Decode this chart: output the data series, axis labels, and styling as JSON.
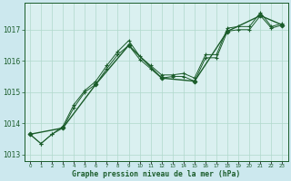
{
  "xlabel": "Graphe pression niveau de la mer (hPa)",
  "background_color": "#cce8ee",
  "plot_bg_color": "#daf0f0",
  "grid_color": "#b0d8cc",
  "line_color": "#1a5c2a",
  "ylim": [
    1012.8,
    1017.85
  ],
  "xlim": [
    -0.5,
    23.5
  ],
  "yticks": [
    1013,
    1014,
    1015,
    1016,
    1017
  ],
  "series1_x": [
    0,
    1,
    2,
    3,
    4,
    5,
    6,
    7,
    8,
    9,
    10,
    11,
    12,
    13,
    14,
    15,
    16,
    17,
    18,
    19,
    20,
    21,
    22,
    23
  ],
  "series1_y": [
    1013.65,
    1013.35,
    1013.65,
    1013.9,
    1014.6,
    1015.05,
    1015.35,
    1015.85,
    1016.3,
    1016.65,
    1016.15,
    1015.85,
    1015.55,
    1015.55,
    1015.6,
    1015.45,
    1016.2,
    1016.2,
    1017.05,
    1017.1,
    1017.1,
    1017.55,
    1017.1,
    1017.2
  ],
  "series2_x": [
    0,
    1,
    2,
    3,
    4,
    5,
    6,
    7,
    8,
    9,
    10,
    11,
    12,
    13,
    14,
    15,
    16,
    17,
    18,
    19,
    20,
    21,
    22,
    23
  ],
  "series2_y": [
    1013.65,
    1013.35,
    1013.65,
    1013.85,
    1014.5,
    1015.0,
    1015.25,
    1015.75,
    1016.2,
    1016.5,
    1016.05,
    1015.75,
    1015.45,
    1015.5,
    1015.5,
    1015.35,
    1016.1,
    1016.1,
    1016.95,
    1017.0,
    1017.0,
    1017.45,
    1017.05,
    1017.15
  ],
  "series3_x": [
    0,
    3,
    6,
    9,
    12,
    15,
    18,
    21,
    23
  ],
  "series3_y": [
    1013.65,
    1013.85,
    1015.25,
    1016.5,
    1015.45,
    1015.35,
    1016.95,
    1017.45,
    1017.15
  ]
}
